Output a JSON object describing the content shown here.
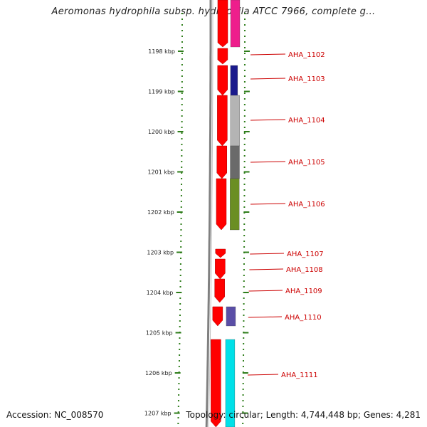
{
  "title": "Aeromonas hydrophila subsp. hydrophila ATCC 7966, complete g...",
  "accession": "Accession: NC_008570",
  "stats": "Topology: circular; Length: 4,744,448 bp; Genes: 4,281",
  "colors": {
    "backbone": "#808080",
    "ruler": "#2e7d1a",
    "forward_gene": "#ff0000",
    "label": "#cc0000"
  },
  "ticks": [
    {
      "label": "1198 kbp"
    },
    {
      "label": "1199 kbp"
    },
    {
      "label": "1200 kbp"
    },
    {
      "label": "1201 kbp"
    },
    {
      "label": "1202 kbp"
    },
    {
      "label": "1203 kbp"
    },
    {
      "label": "1204 kbp"
    },
    {
      "label": "1205 kbp"
    },
    {
      "label": "1206 kbp"
    },
    {
      "label": "1207 kbp"
    }
  ],
  "genes": [
    {
      "label": "AHA_1102",
      "color": "#ee1e8c"
    },
    {
      "label": "AHA_1103",
      "color": "#1a1a8c"
    },
    {
      "label": "AHA_1104",
      "color": "#b4b4b4"
    },
    {
      "label": "AHA_1105",
      "color": "#6a6a6a"
    },
    {
      "label": "AHA_1106",
      "color": "#6b8e23"
    },
    {
      "label": "AHA_1107",
      "color": ""
    },
    {
      "label": "AHA_1108",
      "color": ""
    },
    {
      "label": "AHA_1109",
      "color": ""
    },
    {
      "label": "AHA_1110",
      "color": "#5a4ea6"
    },
    {
      "label": "AHA_1111",
      "color": "#00e0e8"
    }
  ]
}
